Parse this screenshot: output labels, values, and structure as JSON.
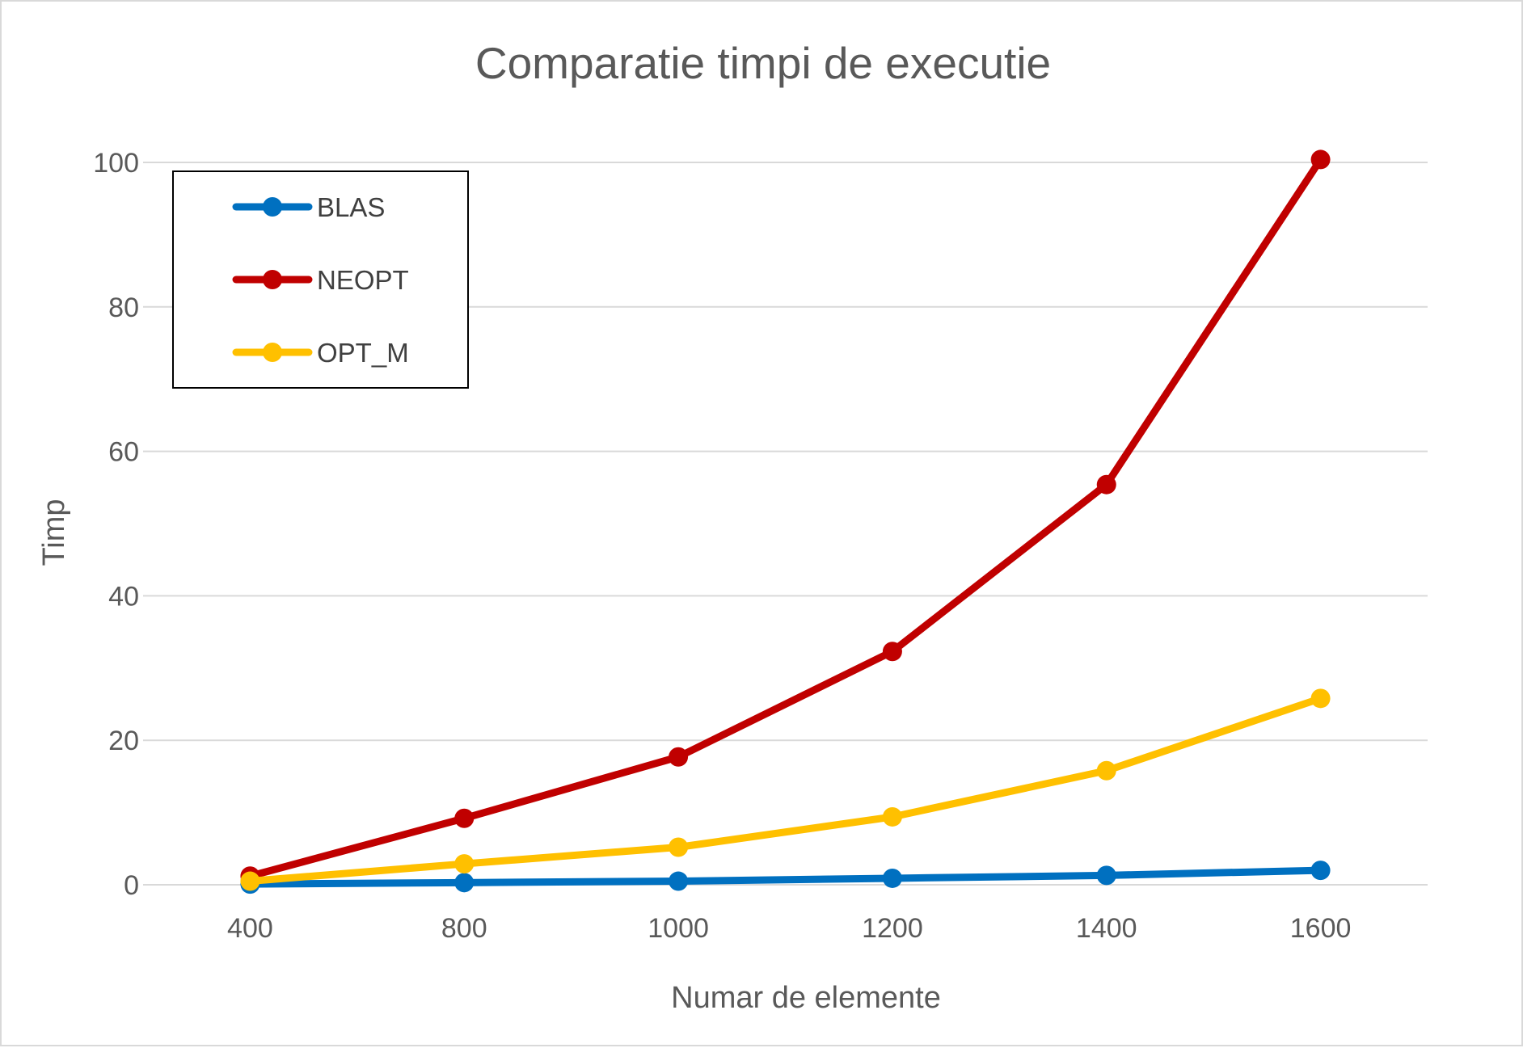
{
  "chart_data": {
    "type": "line",
    "title": "Comparatie timpi de executie",
    "xlabel": "Numar de elemente",
    "ylabel": "Timp",
    "categories": [
      "400",
      "800",
      "1000",
      "1200",
      "1400",
      "1600"
    ],
    "ylim": [
      0,
      100
    ],
    "yticks": [
      0,
      20,
      40,
      60,
      80,
      100
    ],
    "grid": true,
    "legend": "top-left",
    "series": [
      {
        "name": "BLAS",
        "color": "#0070C0",
        "values": [
          0.1,
          0.3,
          0.5,
          0.9,
          1.3,
          2.0
        ]
      },
      {
        "name": "NEOPT",
        "color": "#C00000",
        "values": [
          1.2,
          9.2,
          17.7,
          32.3,
          55.4,
          100.4
        ]
      },
      {
        "name": "OPT_M",
        "color": "#FFC000",
        "values": [
          0.5,
          2.9,
          5.2,
          9.4,
          15.8,
          25.8
        ]
      }
    ]
  }
}
